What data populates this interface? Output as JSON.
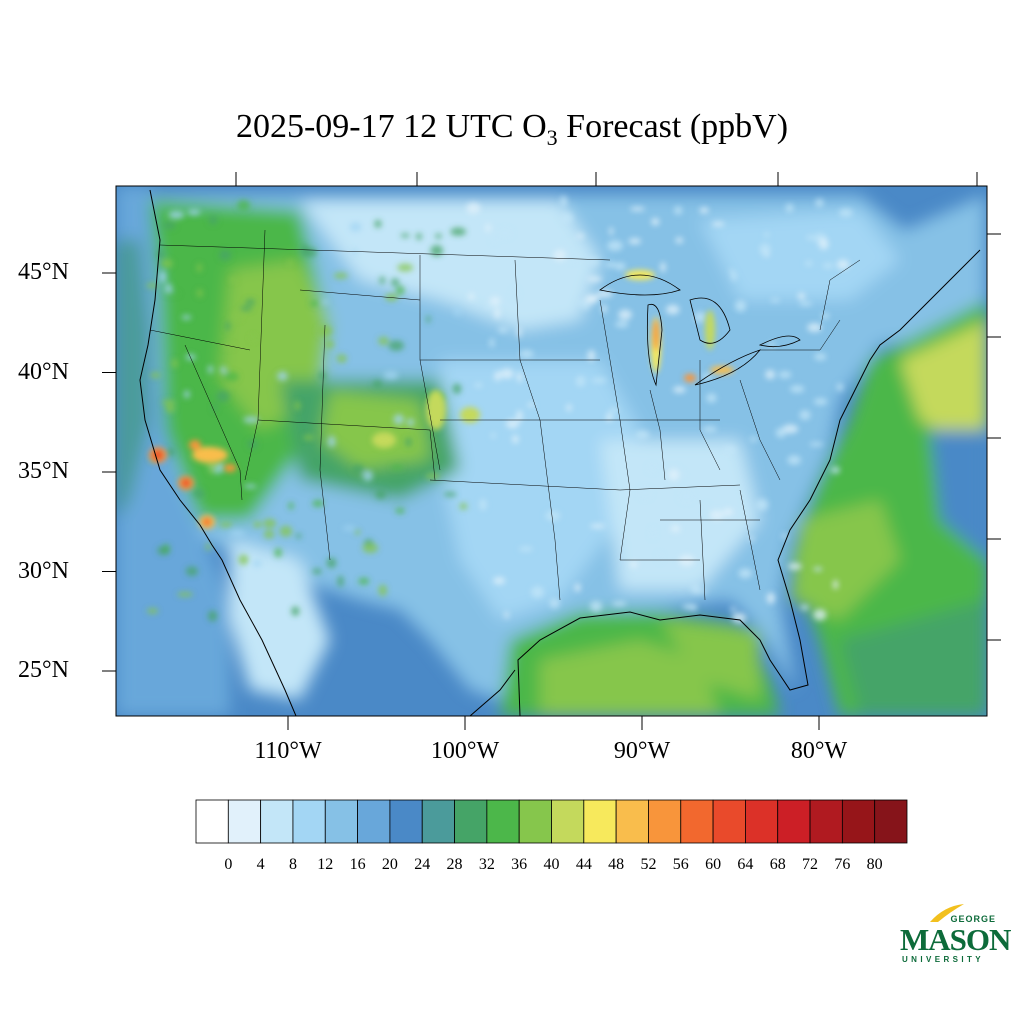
{
  "title": {
    "prefix": "2025-09-17 12 UTC O",
    "subscript": "3",
    "suffix": " Forecast (ppbV)"
  },
  "map": {
    "lat_labels": [
      "45°N",
      "40°N",
      "35°N",
      "30°N",
      "25°N"
    ],
    "lat_values": [
      45,
      40,
      35,
      30,
      25
    ],
    "lon_labels": [
      "110°W",
      "100°W",
      "90°W",
      "80°W"
    ],
    "lon_values": [
      -110,
      -100,
      -90,
      -80
    ]
  },
  "colorbar": {
    "labels": [
      "0",
      "4",
      "8",
      "12",
      "16",
      "20",
      "24",
      "28",
      "32",
      "36",
      "40",
      "44",
      "48",
      "52",
      "56",
      "60",
      "64",
      "68",
      "72",
      "76",
      "80"
    ],
    "colors": [
      "#ffffff",
      "#e1f1fb",
      "#c3e6f8",
      "#a3d6f4",
      "#86c1e6",
      "#68a7da",
      "#4a89c7",
      "#4b9b9b",
      "#45a467",
      "#4cb74a",
      "#86c64c",
      "#c4d95c",
      "#f7e95c",
      "#f9bd4c",
      "#f8953b",
      "#f2682e",
      "#e94a2b",
      "#dc3128",
      "#cc1f26",
      "#b01a20",
      "#961519",
      "#86141a"
    ]
  },
  "logo": {
    "top": "GEORGE",
    "main": "MASON",
    "bottom": "UNIVERSITY",
    "color": "#0d6b3a"
  }
}
